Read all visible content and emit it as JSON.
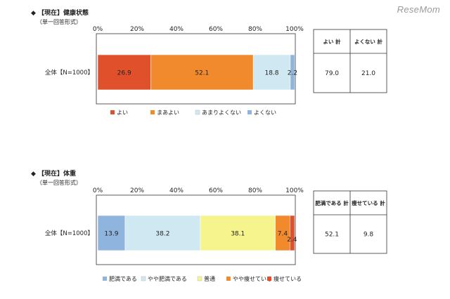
{
  "watermark": "ReseMom",
  "chart_data": [
    {
      "type": "bar",
      "orientation": "horizontal",
      "stacked": "percent",
      "title": "◆ 【現在】健康状態",
      "subtitle": "（単一回答形式）",
      "categories": [
        "全体【N=1000】"
      ],
      "series": [
        {
          "name": "よい",
          "values": [
            26.9
          ],
          "color": "#e0502a"
        },
        {
          "name": "まあよい",
          "values": [
            52.1
          ],
          "color": "#f08a2c"
        },
        {
          "name": "あまりよくない",
          "values": [
            18.8
          ],
          "color": "#cfe8f2"
        },
        {
          "name": "よくない",
          "values": [
            2.2
          ],
          "color": "#8fb4de"
        }
      ],
      "x_ticks": [
        "0%",
        "20%",
        "40%",
        "60%",
        "80%",
        "100%"
      ],
      "xlim": [
        0,
        100
      ],
      "legend_position": "bottom",
      "summary_table": {
        "headers": [
          "よい 計",
          "よくない 計"
        ],
        "values": [
          "79.0",
          "21.0"
        ]
      }
    },
    {
      "type": "bar",
      "orientation": "horizontal",
      "stacked": "percent",
      "title": "◆ 【現在】体重",
      "subtitle": "（単一回答形式）",
      "categories": [
        "全体【N=1000】"
      ],
      "series": [
        {
          "name": "肥満である",
          "values": [
            13.9
          ],
          "color": "#8fb4de"
        },
        {
          "name": "やや肥満である",
          "values": [
            38.2
          ],
          "color": "#cfe8f2"
        },
        {
          "name": "普通",
          "values": [
            38.1
          ],
          "color": "#f6f48c"
        },
        {
          "name": "やや痩せている",
          "values": [
            7.4
          ],
          "color": "#f08a2c"
        },
        {
          "name": "痩せている",
          "values": [
            2.4
          ],
          "color": "#e0502a"
        }
      ],
      "x_ticks": [
        "0%",
        "20%",
        "40%",
        "60%",
        "80%",
        "100%"
      ],
      "xlim": [
        0,
        100
      ],
      "legend_position": "bottom",
      "summary_table": {
        "headers": [
          "肥満である 計",
          "痩せている 計"
        ],
        "values": [
          "52.1",
          "9.8"
        ]
      }
    }
  ]
}
